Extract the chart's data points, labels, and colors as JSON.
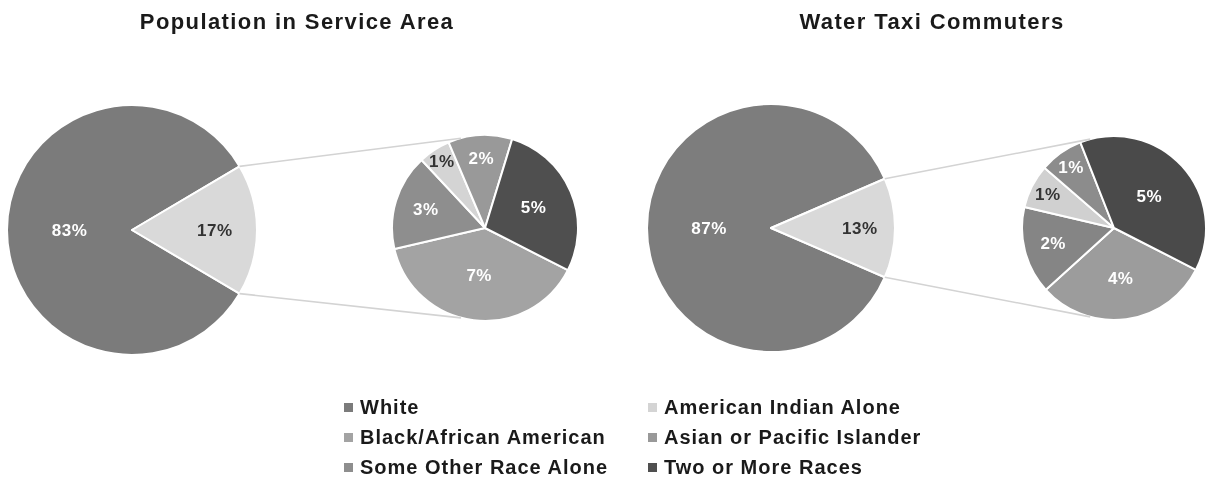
{
  "chart_data": [
    {
      "type": "pie",
      "title": "Population in Service Area",
      "categories": [
        "White",
        null
      ],
      "values": [
        83,
        17
      ],
      "colors": [
        "#7b7b7b",
        "#d9d9d9"
      ],
      "value_labels": [
        "83%",
        "17%"
      ],
      "legend": "bottom"
    },
    {
      "type": "pie",
      "categories": [
        "Black/African American",
        "Some Other Race Alone",
        "American Indian Alone",
        "Asian or Pacific Islander",
        "Two or More Races"
      ],
      "values": [
        7,
        3,
        1,
        2,
        5
      ],
      "colors": [
        "#a3a3a3",
        "#8e8e8e",
        "#d4d4d4",
        "#999999",
        "#4f4f4f"
      ],
      "value_labels": [
        "7%",
        "3%",
        "1%",
        "2%",
        "5%"
      ],
      "legend": "bottom"
    },
    {
      "type": "pie",
      "title": "Water Taxi Commuters",
      "categories": [
        null,
        null
      ],
      "values": [
        87,
        13
      ],
      "colors": [
        "#7d7d7d",
        "#d9d9d9"
      ],
      "value_labels": [
        "87%",
        "13%"
      ]
    },
    {
      "type": "pie",
      "categories": [
        null,
        null,
        null,
        null,
        null
      ],
      "values": [
        4,
        2,
        1,
        1,
        5
      ],
      "colors": [
        "#9c9c9c",
        "#858585",
        "#d0d0d0",
        "#8c8c8c",
        "#4a4a4a"
      ],
      "value_labels": [
        "4%",
        "2%",
        "1%",
        "1%",
        "5%"
      ]
    }
  ]
}
